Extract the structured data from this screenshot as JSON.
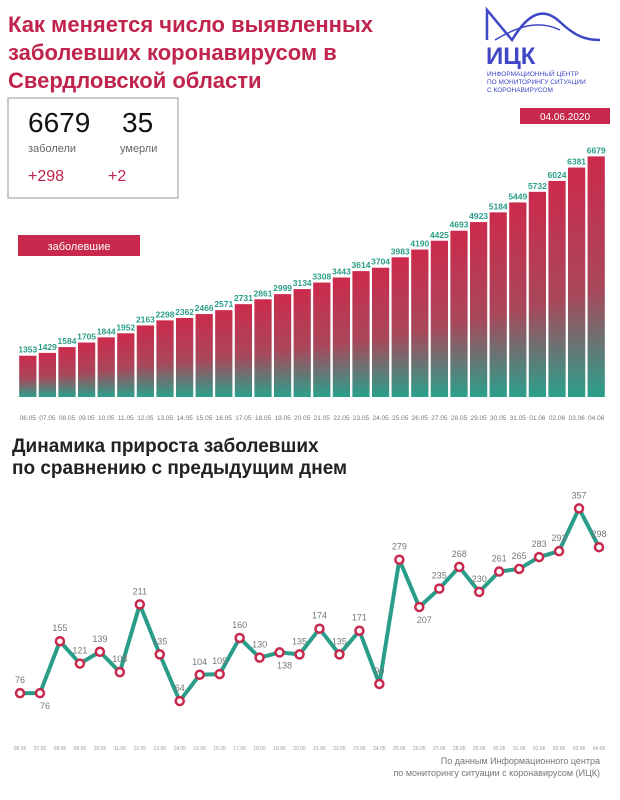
{
  "header": {
    "title": [
      "Как меняется число выявленных",
      "заболевших коронавирусом в",
      "Свердловской области"
    ],
    "logo": "ИЦК",
    "logo_caption": [
      "ИНФОРМАЦИОННЫЙ ЦЕНТР",
      "ПО МОНИТОРИНГУ СИТУАЦИИ",
      "С КОРОНАВИРУСОМ"
    ],
    "date": "04.06.2020"
  },
  "stats": {
    "cases": "6679",
    "cases_label": "заболели",
    "cases_delta": "+298",
    "deaths": "35",
    "deaths_label": "умерли",
    "deaths_delta": "+2"
  },
  "chart_data": [
    {
      "type": "bar",
      "categories": [
        "06.05",
        "07.05",
        "08.05",
        "09.05",
        "10.05",
        "11.05",
        "12.05",
        "13.05",
        "14.05",
        "15.05",
        "16.05",
        "17.05",
        "18.05",
        "19.05",
        "20.05",
        "21.05",
        "22.05",
        "23.05",
        "24.05",
        "25.05",
        "26.05",
        "27.05",
        "28.05",
        "29.05",
        "30.05",
        "31.05",
        "01.06",
        "02.06",
        "03.06",
        "04.06"
      ],
      "series": [
        {
          "name": "заболевшие",
          "color": "#c8284b",
          "values": [
            1353,
            1429,
            1584,
            1705,
            1844,
            1952,
            2163,
            2298,
            2362,
            2466,
            2571,
            2731,
            2861,
            2999,
            3134,
            3308,
            3443,
            3614,
            3704,
            3983,
            4190,
            4425,
            4693,
            4923,
            5184,
            5449,
            5732,
            6024,
            6381,
            6679
          ]
        }
      ],
      "ylim": [
        250,
        6850
      ]
    },
    {
      "type": "line",
      "title": [
        "Динамика прироста заболевших",
        "по сравнению с предыдущим днем"
      ],
      "categories": [
        "06.05",
        "07.05",
        "08.05",
        "09.05",
        "10.05",
        "11.05",
        "12.05",
        "13.05",
        "14.05",
        "15.05",
        "16.05",
        "17.05",
        "18.05",
        "19.05",
        "20.05",
        "21.05",
        "22.05",
        "23.05",
        "24.05",
        "25.05",
        "26.05",
        "27.05",
        "28.05",
        "29.05",
        "30.05",
        "31.05",
        "01.06",
        "02.06",
        "03.06",
        "04.06"
      ],
      "color": "#2a9d8a",
      "marker_color": "#c8284b",
      "values": [
        76,
        76,
        155,
        121,
        139,
        108,
        211,
        135,
        64,
        104,
        105,
        160,
        130,
        138,
        135,
        174,
        135,
        171,
        90,
        279,
        207,
        235,
        268,
        230,
        261,
        265,
        283,
        292,
        357,
        298
      ],
      "ylim": [
        20,
        385
      ]
    }
  ],
  "footer": [
    "По данным Информационного центра",
    "по мониторингу ситуации с коронавирусом (ИЦК)"
  ]
}
